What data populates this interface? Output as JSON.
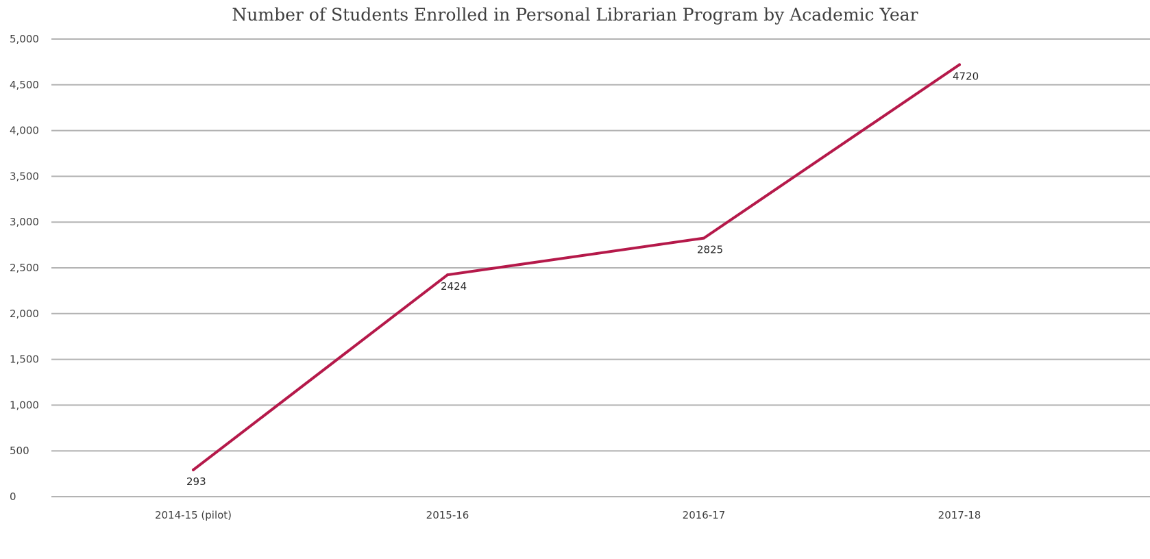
{
  "chart_data": {
    "type": "line",
    "title": "Number of Students Enrolled in Personal Librarian Program by Academic Year",
    "xlabel": "",
    "ylabel": "",
    "categories": [
      "2014-15 (pilot)",
      "2015-16",
      "2016-17",
      "2017-18"
    ],
    "series": [
      {
        "values": [
          293,
          2424,
          2825,
          4720
        ],
        "data_labels": [
          "293",
          "2424",
          "2825",
          "4720"
        ],
        "color": "#b5194a"
      }
    ],
    "ylim": [
      0,
      5000
    ],
    "y_ticks": [
      0,
      500,
      1000,
      1500,
      2000,
      2500,
      3000,
      3500,
      4000,
      4500,
      5000
    ],
    "y_tick_labels": [
      "0",
      "500",
      "1,000",
      "1,500",
      "2,000",
      "2,500",
      "3,000",
      "3,500",
      "4,000",
      "4,500",
      "5,000"
    ],
    "grid": true,
    "legend": "none",
    "gridline_color": "#b3b3b3",
    "text_color": "#404040"
  }
}
